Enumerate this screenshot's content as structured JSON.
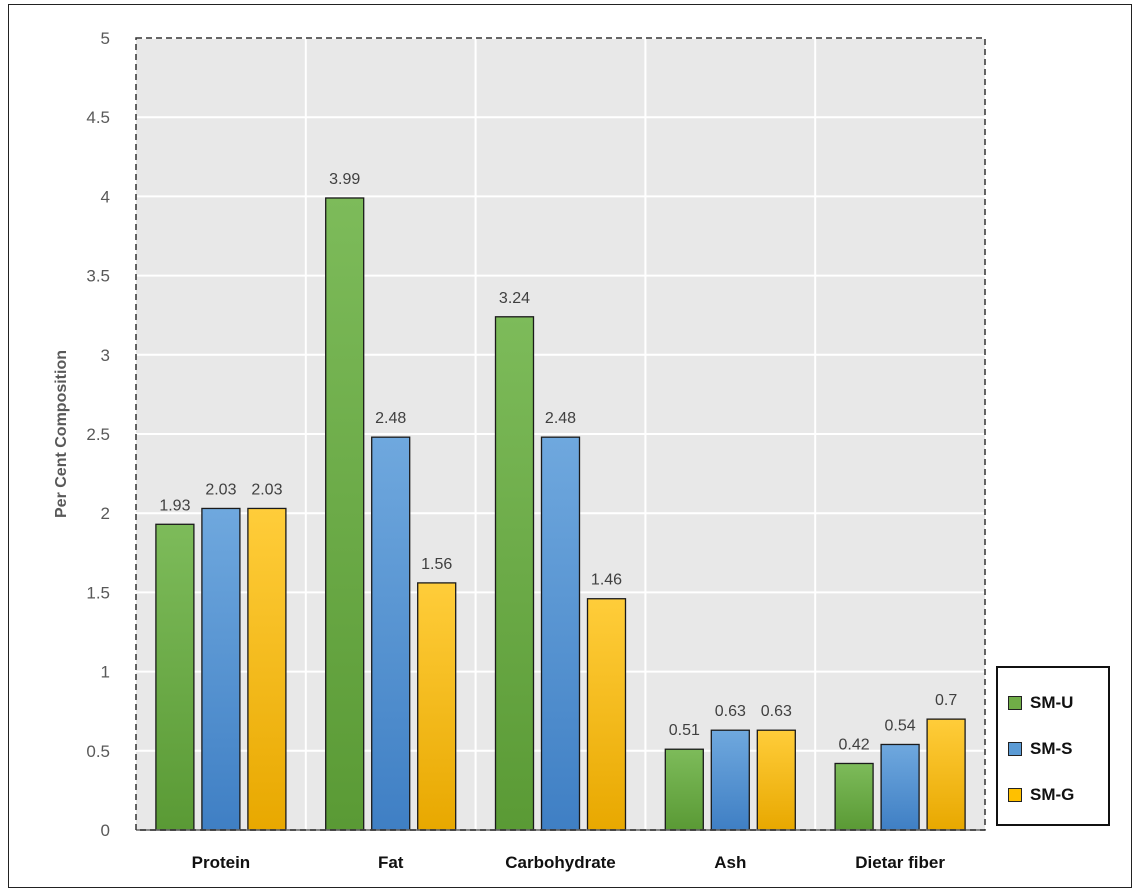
{
  "chart_data": {
    "type": "bar",
    "title": "",
    "xlabel": "",
    "ylabel": "Per Cent Composition",
    "ylim": [
      0,
      5
    ],
    "yticks": [
      0,
      0.5,
      1,
      1.5,
      2,
      2.5,
      3,
      3.5,
      4,
      4.5,
      5
    ],
    "ytick_labels": [
      "0",
      "0.5",
      "1",
      "1.5",
      "2",
      "2.5",
      "3",
      "3.5",
      "4",
      "4.5",
      "5"
    ],
    "grid": true,
    "legend_position": "bottom-right",
    "categories": [
      "Protein",
      "Fat",
      "Carbohydrate",
      "Ash",
      "Dietar fiber"
    ],
    "series": [
      {
        "name": "SM-U",
        "color": "#70ad47",
        "values": [
          1.93,
          3.99,
          3.24,
          0.51,
          0.42
        ],
        "labels": [
          "1.93",
          "3.99",
          "3.24",
          "0.51",
          "0.42"
        ]
      },
      {
        "name": "SM-S",
        "color": "#5b9bd5",
        "values": [
          2.03,
          2.48,
          2.48,
          0.63,
          0.54
        ],
        "labels": [
          "2.03",
          "2.48",
          "2.48",
          "0.63",
          "0.54"
        ]
      },
      {
        "name": "SM-G",
        "color": "#ffc000",
        "values": [
          2.03,
          1.56,
          1.46,
          0.63,
          0.7
        ],
        "labels": [
          "2.03",
          "1.56",
          "1.46",
          "0.63",
          "0.7"
        ]
      }
    ]
  }
}
